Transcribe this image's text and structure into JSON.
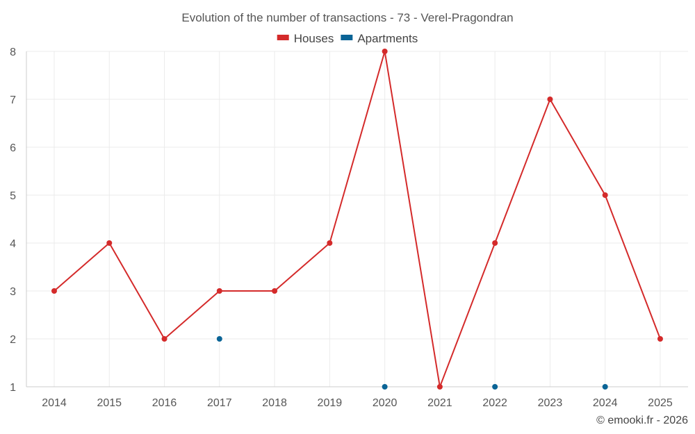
{
  "chart_data": {
    "type": "line",
    "title": "Evolution of the number of transactions - 73 - Verel-Pragondran",
    "categories": [
      2014,
      2015,
      2016,
      2017,
      2018,
      2019,
      2020,
      2021,
      2022,
      2023,
      2024,
      2025
    ],
    "series": [
      {
        "name": "Houses",
        "color": "#d42a2a",
        "values": [
          3,
          4,
          2,
          3,
          3,
          4,
          8,
          1,
          4,
          7,
          5,
          2
        ]
      },
      {
        "name": "Apartments",
        "color": "#0a6496",
        "values": [
          null,
          null,
          null,
          2,
          null,
          null,
          1,
          null,
          1,
          null,
          1,
          null
        ]
      }
    ],
    "ylim": [
      1,
      8
    ],
    "yticks": [
      1,
      2,
      3,
      4,
      5,
      6,
      7,
      8
    ],
    "xlabel": "",
    "ylabel": "",
    "grid": true,
    "legend_position": "top-center"
  },
  "credit": "© emooki.fr - 2026"
}
